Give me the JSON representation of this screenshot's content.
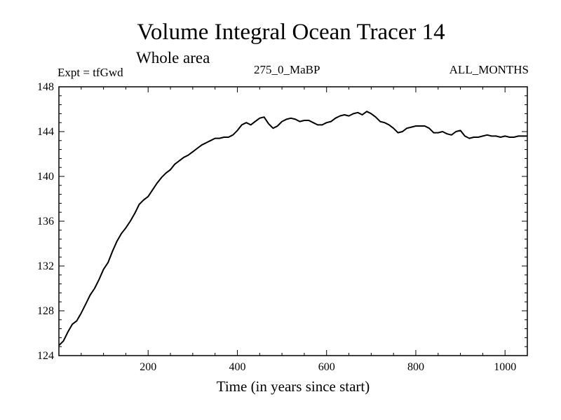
{
  "chart_data": {
    "type": "line",
    "title": "Volume Integral Ocean Tracer 14",
    "subtitle": "Whole area",
    "experiment_label": "Expt = tfGwd",
    "period_label": "275_0_MaBP",
    "months_label": "ALL_MONTHS",
    "xlabel": "Time (in years since start)",
    "ylabel": "",
    "xlim": [
      0,
      1050
    ],
    "ylim": [
      124,
      148
    ],
    "xticks": [
      200,
      400,
      600,
      800,
      1000
    ],
    "yticks": [
      124,
      128,
      132,
      136,
      140,
      144,
      148
    ],
    "grid": false,
    "series": [
      {
        "name": "Tracer 14",
        "color": "#000000",
        "x": [
          0,
          10,
          20,
          30,
          40,
          50,
          60,
          70,
          80,
          90,
          100,
          110,
          120,
          130,
          140,
          150,
          160,
          170,
          180,
          190,
          200,
          210,
          220,
          230,
          240,
          250,
          260,
          270,
          280,
          290,
          300,
          310,
          320,
          330,
          340,
          350,
          360,
          370,
          380,
          390,
          400,
          410,
          420,
          430,
          440,
          450,
          460,
          470,
          480,
          490,
          500,
          510,
          520,
          530,
          540,
          550,
          560,
          570,
          580,
          590,
          600,
          610,
          620,
          630,
          640,
          650,
          660,
          670,
          680,
          690,
          700,
          710,
          720,
          730,
          740,
          750,
          760,
          770,
          780,
          790,
          800,
          810,
          820,
          830,
          840,
          850,
          860,
          870,
          880,
          890,
          900,
          910,
          920,
          930,
          940,
          950,
          960,
          970,
          980,
          990,
          1000,
          1010,
          1020,
          1030,
          1040,
          1050
        ],
        "values": [
          124.9,
          125.3,
          126.1,
          126.8,
          127.1,
          127.8,
          128.6,
          129.4,
          130.0,
          130.8,
          131.7,
          132.3,
          133.3,
          134.2,
          134.9,
          135.4,
          136.0,
          136.7,
          137.5,
          137.9,
          138.2,
          138.8,
          139.4,
          139.9,
          140.3,
          140.6,
          141.1,
          141.4,
          141.7,
          141.9,
          142.2,
          142.5,
          142.8,
          143.0,
          143.2,
          143.4,
          143.4,
          143.5,
          143.5,
          143.7,
          144.1,
          144.6,
          144.8,
          144.6,
          144.9,
          145.2,
          145.3,
          144.7,
          144.3,
          144.5,
          144.9,
          145.1,
          145.2,
          145.1,
          144.9,
          145.0,
          145.0,
          144.8,
          144.6,
          144.6,
          144.8,
          144.9,
          145.2,
          145.4,
          145.5,
          145.4,
          145.6,
          145.7,
          145.5,
          145.8,
          145.6,
          145.3,
          144.9,
          144.8,
          144.6,
          144.3,
          143.9,
          144.0,
          144.3,
          144.4,
          144.5,
          144.5,
          144.5,
          144.3,
          143.9,
          143.9,
          144.0,
          143.8,
          143.7,
          144.0,
          144.1,
          143.6,
          143.4,
          143.5,
          143.5,
          143.6,
          143.7,
          143.6,
          143.6,
          143.5,
          143.6,
          143.5,
          143.5,
          143.6,
          143.6,
          143.6
        ]
      }
    ]
  }
}
